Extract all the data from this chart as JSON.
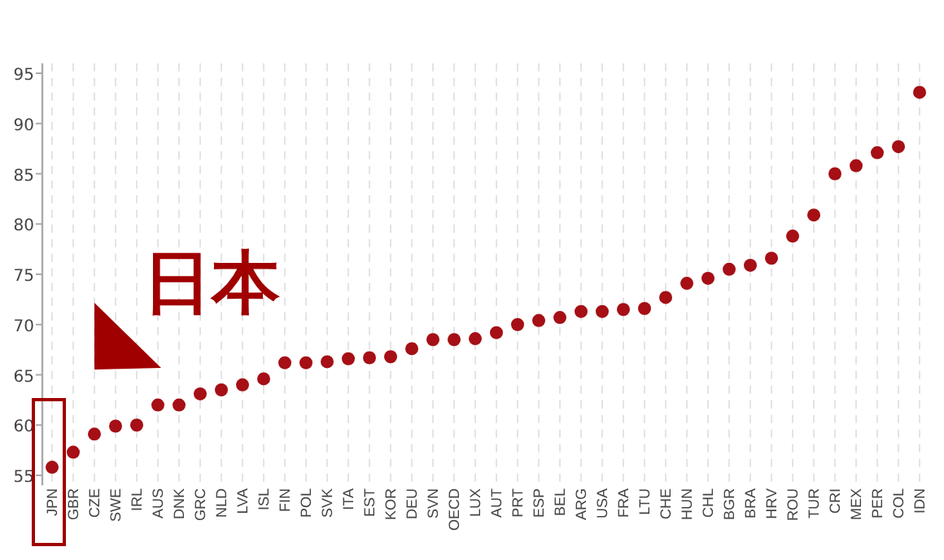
{
  "chart_data": {
    "type": "scatter",
    "categories": [
      "JPN",
      "GBR",
      "CZE",
      "SWE",
      "IRL",
      "AUS",
      "DNK",
      "GRC",
      "NLD",
      "LVA",
      "ISL",
      "FIN",
      "POL",
      "SVK",
      "ITA",
      "EST",
      "KOR",
      "DEU",
      "SVN",
      "OECD",
      "LUX",
      "AUT",
      "PRT",
      "ESP",
      "BEL",
      "ARG",
      "USA",
      "FRA",
      "LTU",
      "CHE",
      "HUN",
      "CHL",
      "BGR",
      "BRA",
      "HRV",
      "ROU",
      "TUR",
      "CRI",
      "MEX",
      "PER",
      "COL",
      "IDN"
    ],
    "series": [
      {
        "color": "#a50f15",
        "values": [
          55.8,
          57.3,
          59.1,
          59.9,
          60.0,
          62.0,
          62.0,
          63.1,
          63.5,
          64.0,
          64.6,
          66.2,
          66.2,
          66.3,
          66.6,
          66.7,
          66.8,
          67.6,
          68.5,
          68.5,
          68.6,
          69.2,
          70.0,
          70.4,
          70.7,
          71.3,
          71.3,
          71.5,
          71.6,
          72.7,
          74.1,
          74.6,
          75.5,
          75.9,
          76.6,
          78.8,
          80.9,
          85.0,
          85.8,
          87.1,
          87.7,
          93.1
        ]
      }
    ],
    "ylim": [
      54,
      96
    ],
    "yticks": [
      55,
      60,
      65,
      70,
      75,
      80,
      85,
      90,
      95
    ],
    "grid": "x",
    "marker": "circle",
    "annotations": [
      {
        "text": "日本",
        "x": "JPN",
        "y": 55.8
      }
    ]
  }
}
